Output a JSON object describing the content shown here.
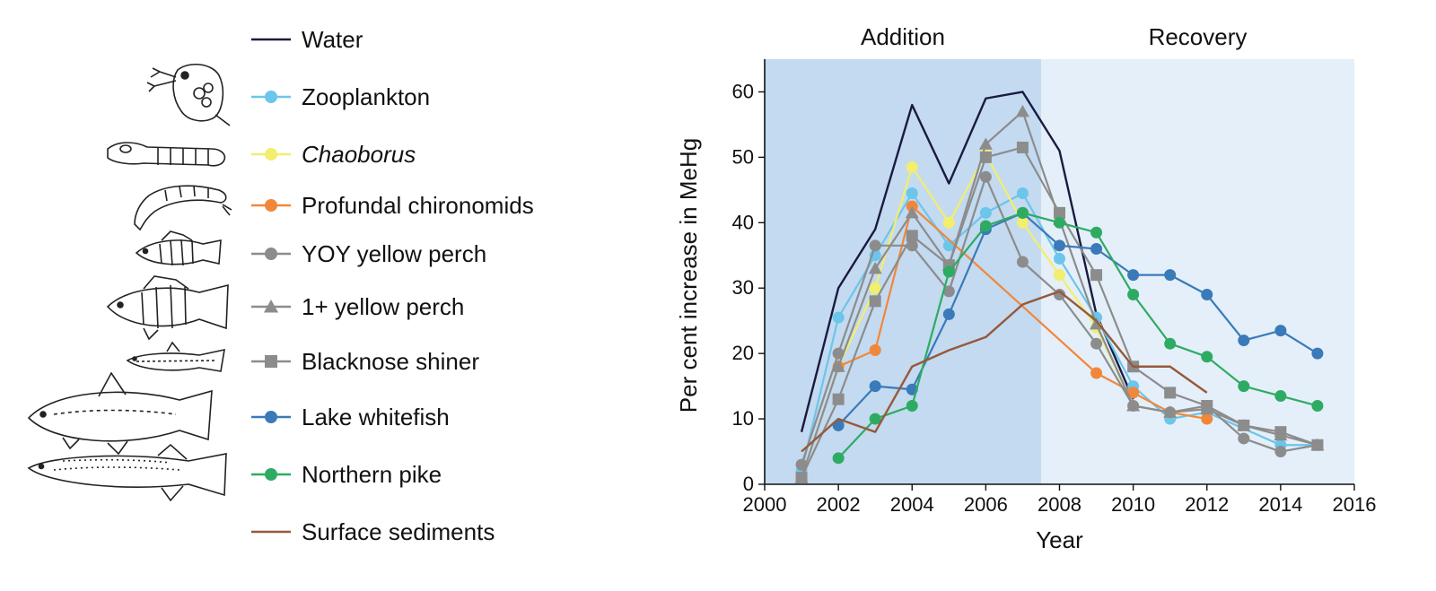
{
  "chart_data": {
    "type": "line",
    "xlabel": "Year",
    "ylabel": "Per cent increase in MeHg",
    "xlim": [
      2000,
      2016
    ],
    "ylim": [
      0,
      65
    ],
    "xticks": [
      2000,
      2002,
      2004,
      2006,
      2008,
      2010,
      2012,
      2014,
      2016
    ],
    "yticks": [
      0,
      10,
      20,
      30,
      40,
      50,
      60
    ],
    "grid": false,
    "legend_position": "left",
    "phases": [
      {
        "label": "Addition",
        "x_start": 2000,
        "x_end": 2007.5,
        "color": "#c3daf0"
      },
      {
        "label": "Recovery",
        "x_start": 2007.5,
        "x_end": 2016,
        "color": "#e4eff9"
      }
    ],
    "series": [
      {
        "name": "Water",
        "color": "#1a1a40",
        "marker": "none",
        "x": [
          2001,
          2002,
          2003,
          2004,
          2005,
          2006,
          2007,
          2008,
          2009,
          2010
        ],
        "y": [
          8,
          30,
          39,
          58,
          46,
          59,
          60,
          51,
          26,
          13
        ]
      },
      {
        "name": "Zooplankton",
        "color": "#6cc5ea",
        "marker": "circle",
        "x": [
          2001,
          2002,
          2003,
          2004,
          2005,
          2006,
          2007,
          2008,
          2009,
          2010,
          2011,
          2012,
          2014,
          2015
        ],
        "y": [
          2,
          25.5,
          35,
          44.5,
          36.5,
          41.5,
          44.5,
          34.5,
          25.5,
          15,
          10,
          11,
          6,
          6
        ]
      },
      {
        "name": "Chaoborus",
        "italic": true,
        "color": "#f2ee6e",
        "marker": "circle",
        "x": [
          2001,
          2002,
          2003,
          2004,
          2005,
          2006,
          2007,
          2008,
          2009,
          2010,
          2011,
          2012
        ],
        "y": [
          1,
          18,
          30,
          48.5,
          40,
          50.5,
          40,
          32,
          24,
          12,
          11,
          10
        ]
      },
      {
        "name": "Profundal chironomids",
        "color": "#f1873b",
        "marker": "circle",
        "x": [
          2002,
          2003,
          2004,
          2009,
          2010,
          2011,
          2012
        ],
        "y": [
          18,
          20.5,
          42.5,
          17,
          14,
          11,
          10
        ]
      },
      {
        "name": "YOY yellow perch",
        "color": "#8c8c8c",
        "marker": "circle",
        "x": [
          2001,
          2002,
          2003,
          2004,
          2005,
          2006,
          2007,
          2008,
          2009,
          2010,
          2011,
          2012,
          2013,
          2014,
          2015
        ],
        "y": [
          3,
          20,
          36.5,
          36.5,
          29.5,
          47,
          34,
          29,
          21.5,
          12,
          11,
          12,
          7,
          5,
          6
        ]
      },
      {
        "name": "1+ yellow perch",
        "color": "#8c8c8c",
        "marker": "triangle",
        "x": [
          2001,
          2002,
          2003,
          2004,
          2005,
          2006,
          2007,
          2008,
          2009,
          2010,
          2011,
          2012,
          2013,
          2014,
          2015
        ],
        "y": [
          1,
          18,
          33,
          41.5,
          33.5,
          52,
          57,
          40.5,
          24.5,
          12,
          11,
          11.5,
          9,
          7.5,
          6
        ]
      },
      {
        "name": "Blacknose shiner",
        "color": "#8c8c8c",
        "marker": "square",
        "x": [
          2001,
          2002,
          2003,
          2004,
          2005,
          2006,
          2007,
          2008,
          2009,
          2010,
          2011,
          2012,
          2013,
          2014,
          2015
        ],
        "y": [
          1,
          13,
          28,
          38,
          33.5,
          50,
          51.5,
          41.5,
          32,
          18,
          14,
          12,
          9,
          8,
          6
        ]
      },
      {
        "name": "Lake whitefish",
        "color": "#3a7ab8",
        "marker": "circle",
        "x": [
          2002,
          2003,
          2004,
          2005,
          2006,
          2007,
          2008,
          2009,
          2010,
          2011,
          2012,
          2013,
          2014,
          2015
        ],
        "y": [
          9,
          15,
          14.5,
          26,
          39,
          41.5,
          36.5,
          36,
          32,
          32,
          29,
          22,
          23.5,
          20
        ]
      },
      {
        "name": "Northern pike",
        "color": "#2eab62",
        "marker": "circle",
        "x": [
          2002,
          2003,
          2004,
          2005,
          2006,
          2007,
          2008,
          2009,
          2010,
          2011,
          2012,
          2013,
          2014,
          2015
        ],
        "y": [
          4,
          10,
          12,
          32.5,
          39.5,
          41.5,
          40,
          38.5,
          29,
          21.5,
          19.5,
          15,
          13.5,
          12
        ]
      },
      {
        "name": "Surface sediments",
        "color": "#96593a",
        "marker": "none",
        "x": [
          2001,
          2002,
          2003,
          2004,
          2005,
          2006,
          2007,
          2008,
          2009,
          2010,
          2011,
          2012
        ],
        "y": [
          5,
          10,
          8,
          18,
          20.5,
          22.5,
          27.5,
          29.5,
          25,
          18,
          18,
          14
        ]
      }
    ]
  }
}
